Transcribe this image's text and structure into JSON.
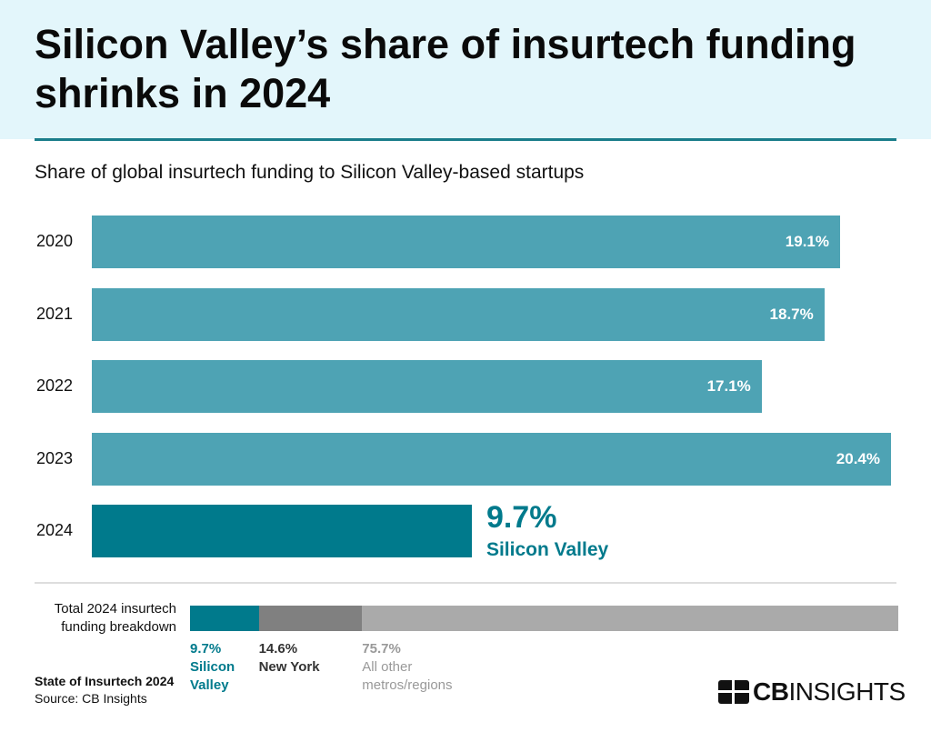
{
  "title": "Silicon Valley’s share of insurtech funding shrinks in 2024",
  "subtitle": "Share of global insurtech funding to Silicon Valley-based startups",
  "colors": {
    "bar": "#4ea3b4",
    "highlight": "#007a8c",
    "new_york": "#808080",
    "other": "#aaaaaa",
    "header_bg": "#e3f6fb"
  },
  "chart_data": [
    {
      "type": "bar",
      "orientation": "horizontal",
      "categories": [
        "2020",
        "2021",
        "2022",
        "2023",
        "2024"
      ],
      "values": [
        19.1,
        18.7,
        17.1,
        20.4,
        9.7
      ],
      "labels": [
        "19.1%",
        "18.7%",
        "17.1%",
        "20.4%",
        "9.7%"
      ],
      "highlight_label": "Silicon Valley",
      "xlim": [
        0,
        20.4
      ]
    },
    {
      "type": "bar",
      "stacked": true,
      "label": "Total 2024 insurtech funding breakdown",
      "series": [
        {
          "name": "Silicon Valley",
          "value": 9.7,
          "label": "9.7%"
        },
        {
          "name": "New York",
          "value": 14.6,
          "label": "14.6%"
        },
        {
          "name": "All other metros/regions",
          "value": 75.7,
          "label": "75.7%"
        }
      ]
    }
  ],
  "footer": {
    "report": "State of Insurtech 2024",
    "source": "Source: CB Insights",
    "logo_bold": "CB",
    "logo_light": "INSIGHTS"
  }
}
